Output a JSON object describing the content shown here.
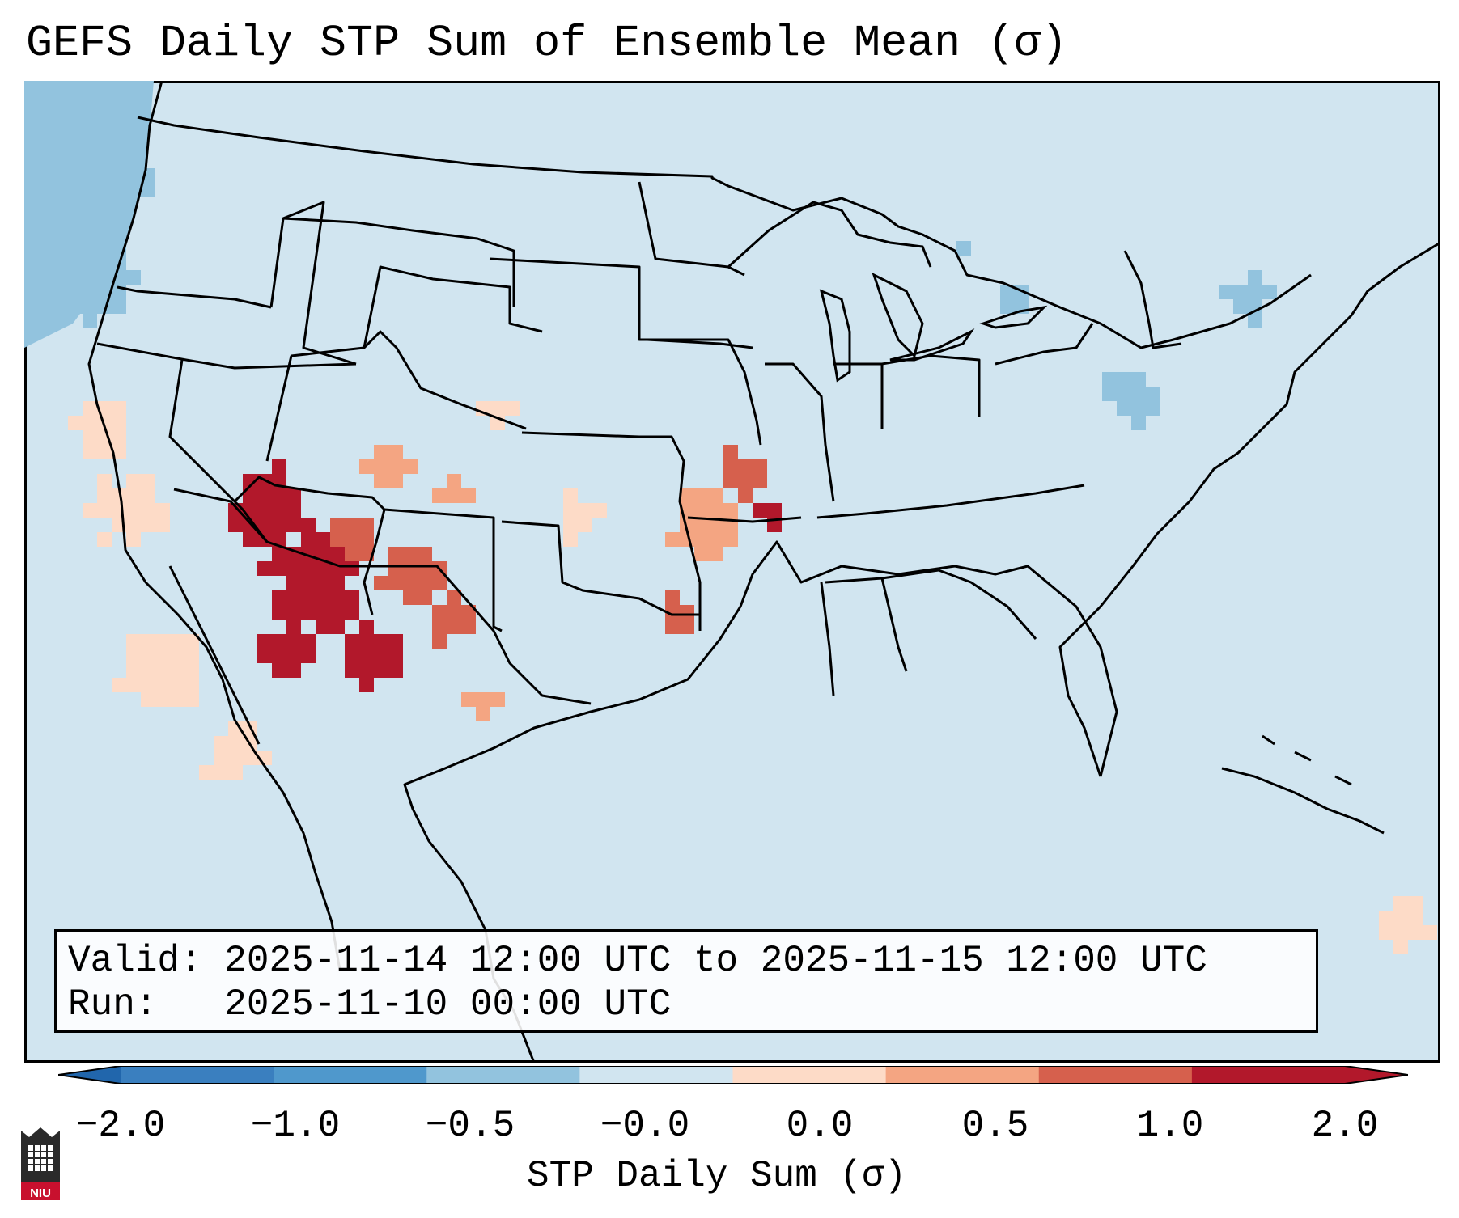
{
  "title": "GEFS Daily STP Sum of Ensemble Mean (σ)",
  "info": {
    "valid": "Valid: 2025-11-14 12:00 UTC to 2025-11-15 12:00 UTC",
    "run": "Run:   2025-11-10 00:00 UTC"
  },
  "colorbar": {
    "label": "STP Daily Sum (σ)",
    "ticks": [
      "−2.0",
      "−1.0",
      "−0.5",
      "−0.0",
      "0.0",
      "0.5",
      "1.0",
      "2.0"
    ],
    "bins": [
      {
        "color": "#3a7fbf"
      },
      {
        "color": "#4f98cc"
      },
      {
        "color": "#92c3de"
      },
      {
        "color": "#d1e5f0"
      },
      {
        "color": "#fddbc7"
      },
      {
        "color": "#f4a582"
      },
      {
        "color": "#d6604d"
      },
      {
        "color": "#b2182b"
      }
    ],
    "under_color": "#2166ac",
    "over_color": "#b2182b"
  },
  "map": {
    "background_color": "#d1e5f0",
    "ocean_edge_color": "#92c3de",
    "border_color": "#000000"
  },
  "logo": {
    "text": "NIU",
    "color": "#c8102e"
  }
}
